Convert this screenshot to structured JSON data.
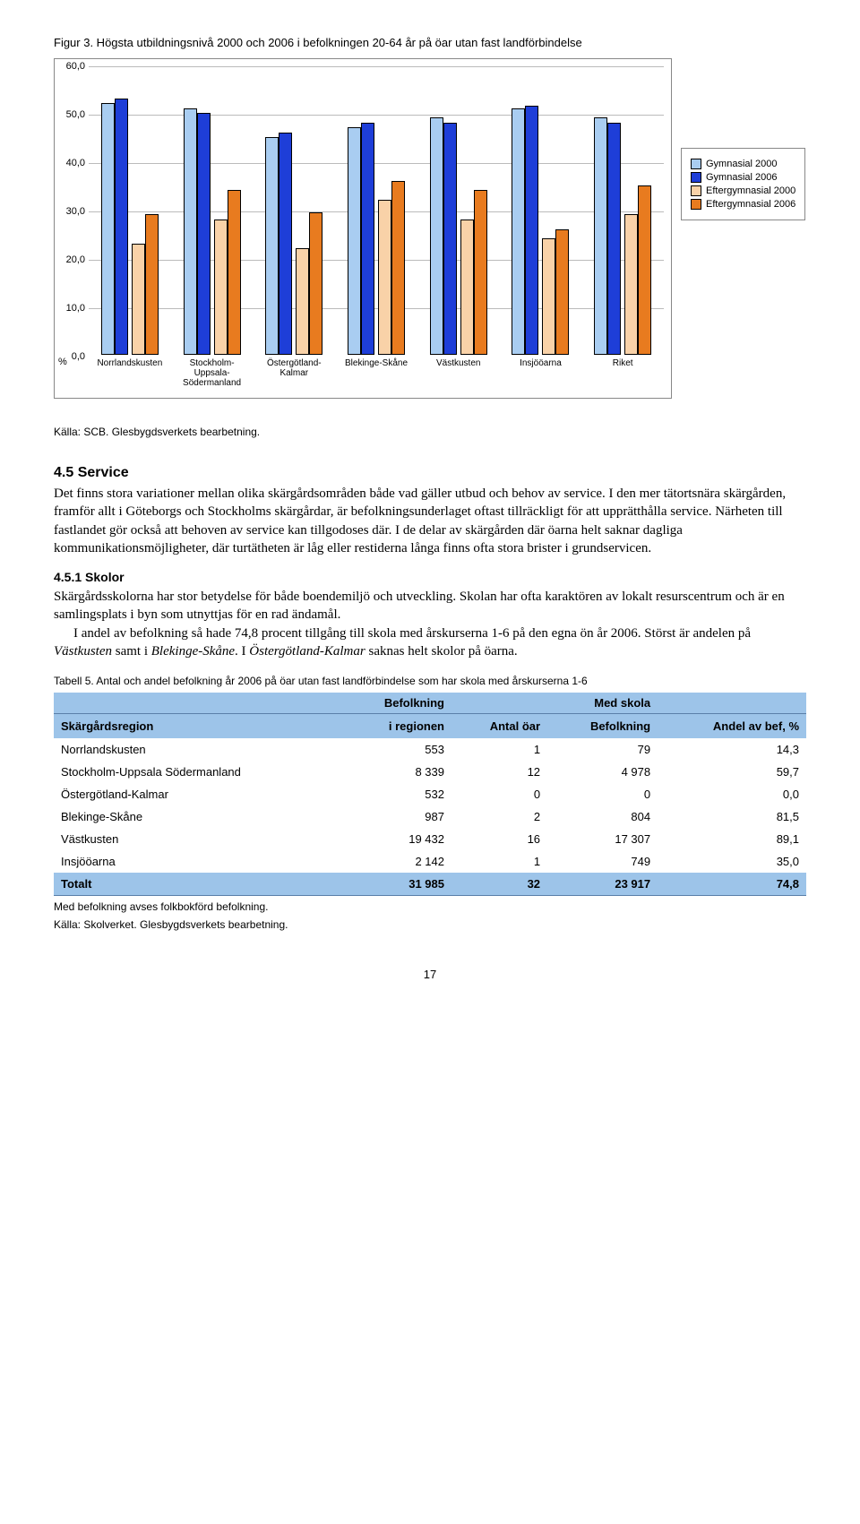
{
  "figure": {
    "title": "Figur 3. Högsta utbildningsnivå 2000 och 2006 i befolkningen 20-64 år på öar utan fast landförbindelse",
    "source": "Källa: SCB. Glesbygdsverkets bearbetning.",
    "chart": {
      "type": "bar",
      "ymax": 60,
      "ytick_step": 10,
      "yticks": [
        "0,0",
        "10,0",
        "20,0",
        "30,0",
        "40,0",
        "50,0",
        "60,0"
      ],
      "yaxis_zero_suffix": "%",
      "categories": [
        "Norrlandskusten",
        "Stockholm-\nUppsala-\nSödermanland",
        "Östergötland-\nKalmar",
        "Blekinge-Skåne",
        "Västkusten",
        "Insjööarna",
        "Riket"
      ],
      "series": [
        {
          "name": "Gymnasial 2000",
          "color": "#a9cdf1",
          "values": [
            52,
            51,
            45,
            47,
            49,
            51,
            49
          ]
        },
        {
          "name": "Gymnasial 2006",
          "color": "#1e3ed8",
          "values": [
            53,
            50,
            46,
            48,
            48,
            51.5,
            48
          ]
        },
        {
          "name": "Eftergymnasial 2000",
          "color": "#f9d2a8",
          "values": [
            23,
            28,
            22,
            32,
            28,
            24,
            29
          ]
        },
        {
          "name": "Eftergymnasial 2006",
          "color": "#e87b1f",
          "values": [
            29,
            34,
            29.5,
            36,
            34,
            26,
            35
          ]
        }
      ],
      "grid_color": "#bbbbbb",
      "border_color": "#888888",
      "legend_border": "#888888",
      "tick_fontsize": 11,
      "xlabel_fontsize": 10
    }
  },
  "section": {
    "heading": "4.5   Service",
    "body1": "Det finns stora variationer mellan olika skärgårdsområden både vad gäller utbud och behov av service. I den mer tätortsnära skärgården, framför allt i Göteborgs och Stockholms skärgårdar, är befolkningsunderlaget oftast tillräckligt för att upprätthålla service. Närheten till fastlandet gör också att behoven av service kan tillgodoses där. I de delar av skärgården där öarna helt saknar dagliga kommunikationsmöjligheter, där turtätheten är låg eller restiderna långa finns ofta stora brister i grundservicen.",
    "sub_heading": "4.5.1  Skolor",
    "body2a": "Skärgårdsskolorna har stor betydelse för både boendemiljö och utveckling. Skolan har ofta karaktören av lokalt resurscentrum och är en samlingsplats i byn som utnyttjas för en rad ändamål.",
    "body2b_prefix": "I andel av befolkning så hade 74,8 procent tillgång till skola med årskurserna 1-6 på den egna ön år 2006. Störst är andelen på ",
    "body2b_em1": "Västkusten",
    "body2b_mid": " samt i ",
    "body2b_em2": "Blekinge-Skåne",
    "body2b_mid2": ". I ",
    "body2b_em3": "Östergötland-Kalmar",
    "body2b_suffix": " saknas helt skolor på öarna."
  },
  "table": {
    "title": "Tabell 5. Antal och andel befolkning år 2006 på öar utan fast landförbindelse som har skola med årskurserna 1-6",
    "super_headers": [
      "",
      "Befolkning",
      "",
      "Med skola",
      ""
    ],
    "columns": [
      "Skärgårdsregion",
      "i regionen",
      "Antal öar",
      "Befolkning",
      "Andel av bef, %"
    ],
    "header_bg": "#9dc4e9",
    "rows": [
      [
        "Norrlandskusten",
        "553",
        "1",
        "79",
        "14,3"
      ],
      [
        "Stockholm-Uppsala Södermanland",
        "8 339",
        "12",
        "4 978",
        "59,7"
      ],
      [
        "Östergötland-Kalmar",
        "532",
        "0",
        "0",
        "0,0"
      ],
      [
        "Blekinge-Skåne",
        "987",
        "2",
        "804",
        "81,5"
      ],
      [
        "Västkusten",
        "19 432",
        "16",
        "17 307",
        "89,1"
      ],
      [
        "Insjööarna",
        "2 142",
        "1",
        "749",
        "35,0"
      ]
    ],
    "total_row": [
      "Totalt",
      "31 985",
      "32",
      "23 917",
      "74,8"
    ],
    "note1": "Med befolkning avses folkbokförd befolkning.",
    "note2": "Källa: Skolverket. Glesbygdsverkets bearbetning."
  },
  "page_number": "17"
}
